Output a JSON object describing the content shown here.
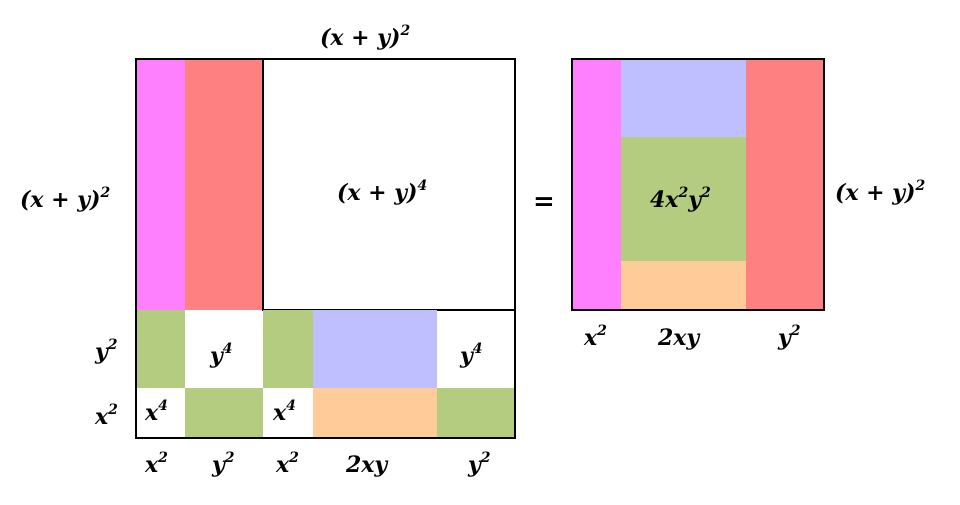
{
  "colors": {
    "magenta": "#ff80ff",
    "red": "#ff8080",
    "green": "#b3cc80",
    "blue": "#bfbfff",
    "orange": "#ffcc99"
  },
  "left": {
    "top_label": {
      "base": "(x + y)",
      "exp": "2"
    },
    "side_label": {
      "base": "(x + y)",
      "exp": "2"
    },
    "center_label": {
      "base": "(x + y)",
      "exp": "4"
    },
    "row_labels": [
      {
        "base": "y",
        "exp": "2"
      },
      {
        "base": "x",
        "exp": "2"
      }
    ],
    "col_labels": [
      {
        "base": "x",
        "exp": "2"
      },
      {
        "base": "y",
        "exp": "2"
      },
      {
        "base": "x",
        "exp": "2"
      },
      {
        "base": "2xy",
        "exp": ""
      },
      {
        "base": "y",
        "exp": "2"
      }
    ],
    "cells": [
      {
        "base": "y",
        "exp": "4"
      },
      {
        "base": "y",
        "exp": "4"
      },
      {
        "base": "x",
        "exp": "4"
      },
      {
        "base": "x",
        "exp": "4"
      }
    ]
  },
  "equals": "=",
  "right": {
    "side_label": {
      "base": "(x + y)",
      "exp": "2"
    },
    "center_label": {
      "base": "4x",
      "exp": "2",
      "base2": "y",
      "exp2": "2"
    },
    "col_labels": [
      {
        "base": "x",
        "exp": "2"
      },
      {
        "base": "2xy",
        "exp": ""
      },
      {
        "base": "y",
        "exp": "2"
      }
    ]
  }
}
